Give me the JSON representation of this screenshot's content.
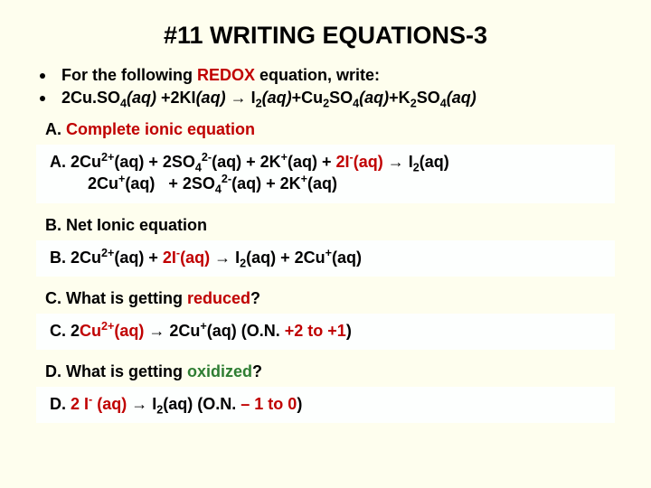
{
  "colors": {
    "background": "#fefeee",
    "answer_background": "#fdfffe",
    "text": "#000000",
    "red": "#c00000",
    "green": "#2e7d32"
  },
  "typography": {
    "title_fontsize": 27,
    "body_fontsize": 18,
    "font_weight": 900,
    "font_family": "Arial"
  },
  "title": "#11 WRITING EQUATIONS-3",
  "intro": {
    "prefix": "For the following ",
    "redox": "REDOX",
    "suffix": " equation, write:"
  },
  "equation_plain": "2Cu.SO4(aq) +2KI(aq) → I2(aq)+Cu2SO4(aq)+K2SO4(aq)",
  "sections": {
    "A": {
      "label_prefix": "A. ",
      "label_red": "Complete ionic equation"
    },
    "B": {
      "label": "B. Net Ionic equation"
    },
    "C": {
      "label_prefix": "C. What is getting ",
      "label_red": "reduced",
      "label_suffix": "?"
    },
    "D": {
      "label_prefix": "D. What is getting ",
      "label_green": "oxidized",
      "label_suffix": "?"
    }
  },
  "answers": {
    "A_line1_plain": "A. 2Cu2+(aq) + 2SO42-(aq) + 2K+(aq) + 2I-(aq) → I2(aq)",
    "A_line2_plain": "2Cu+(aq)   + 2SO42-(aq) + 2K+(aq)",
    "B_plain": "B. 2Cu2+(aq) + 2I-(aq) → I2(aq) + 2Cu+(aq)",
    "C_plain": "C. 2Cu2+(aq) → 2Cu+(aq) (O.N. +2 to +1)",
    "D_plain": "D. 2 I- (aq) → I2(aq) (O.N. – 1 to 0)"
  }
}
